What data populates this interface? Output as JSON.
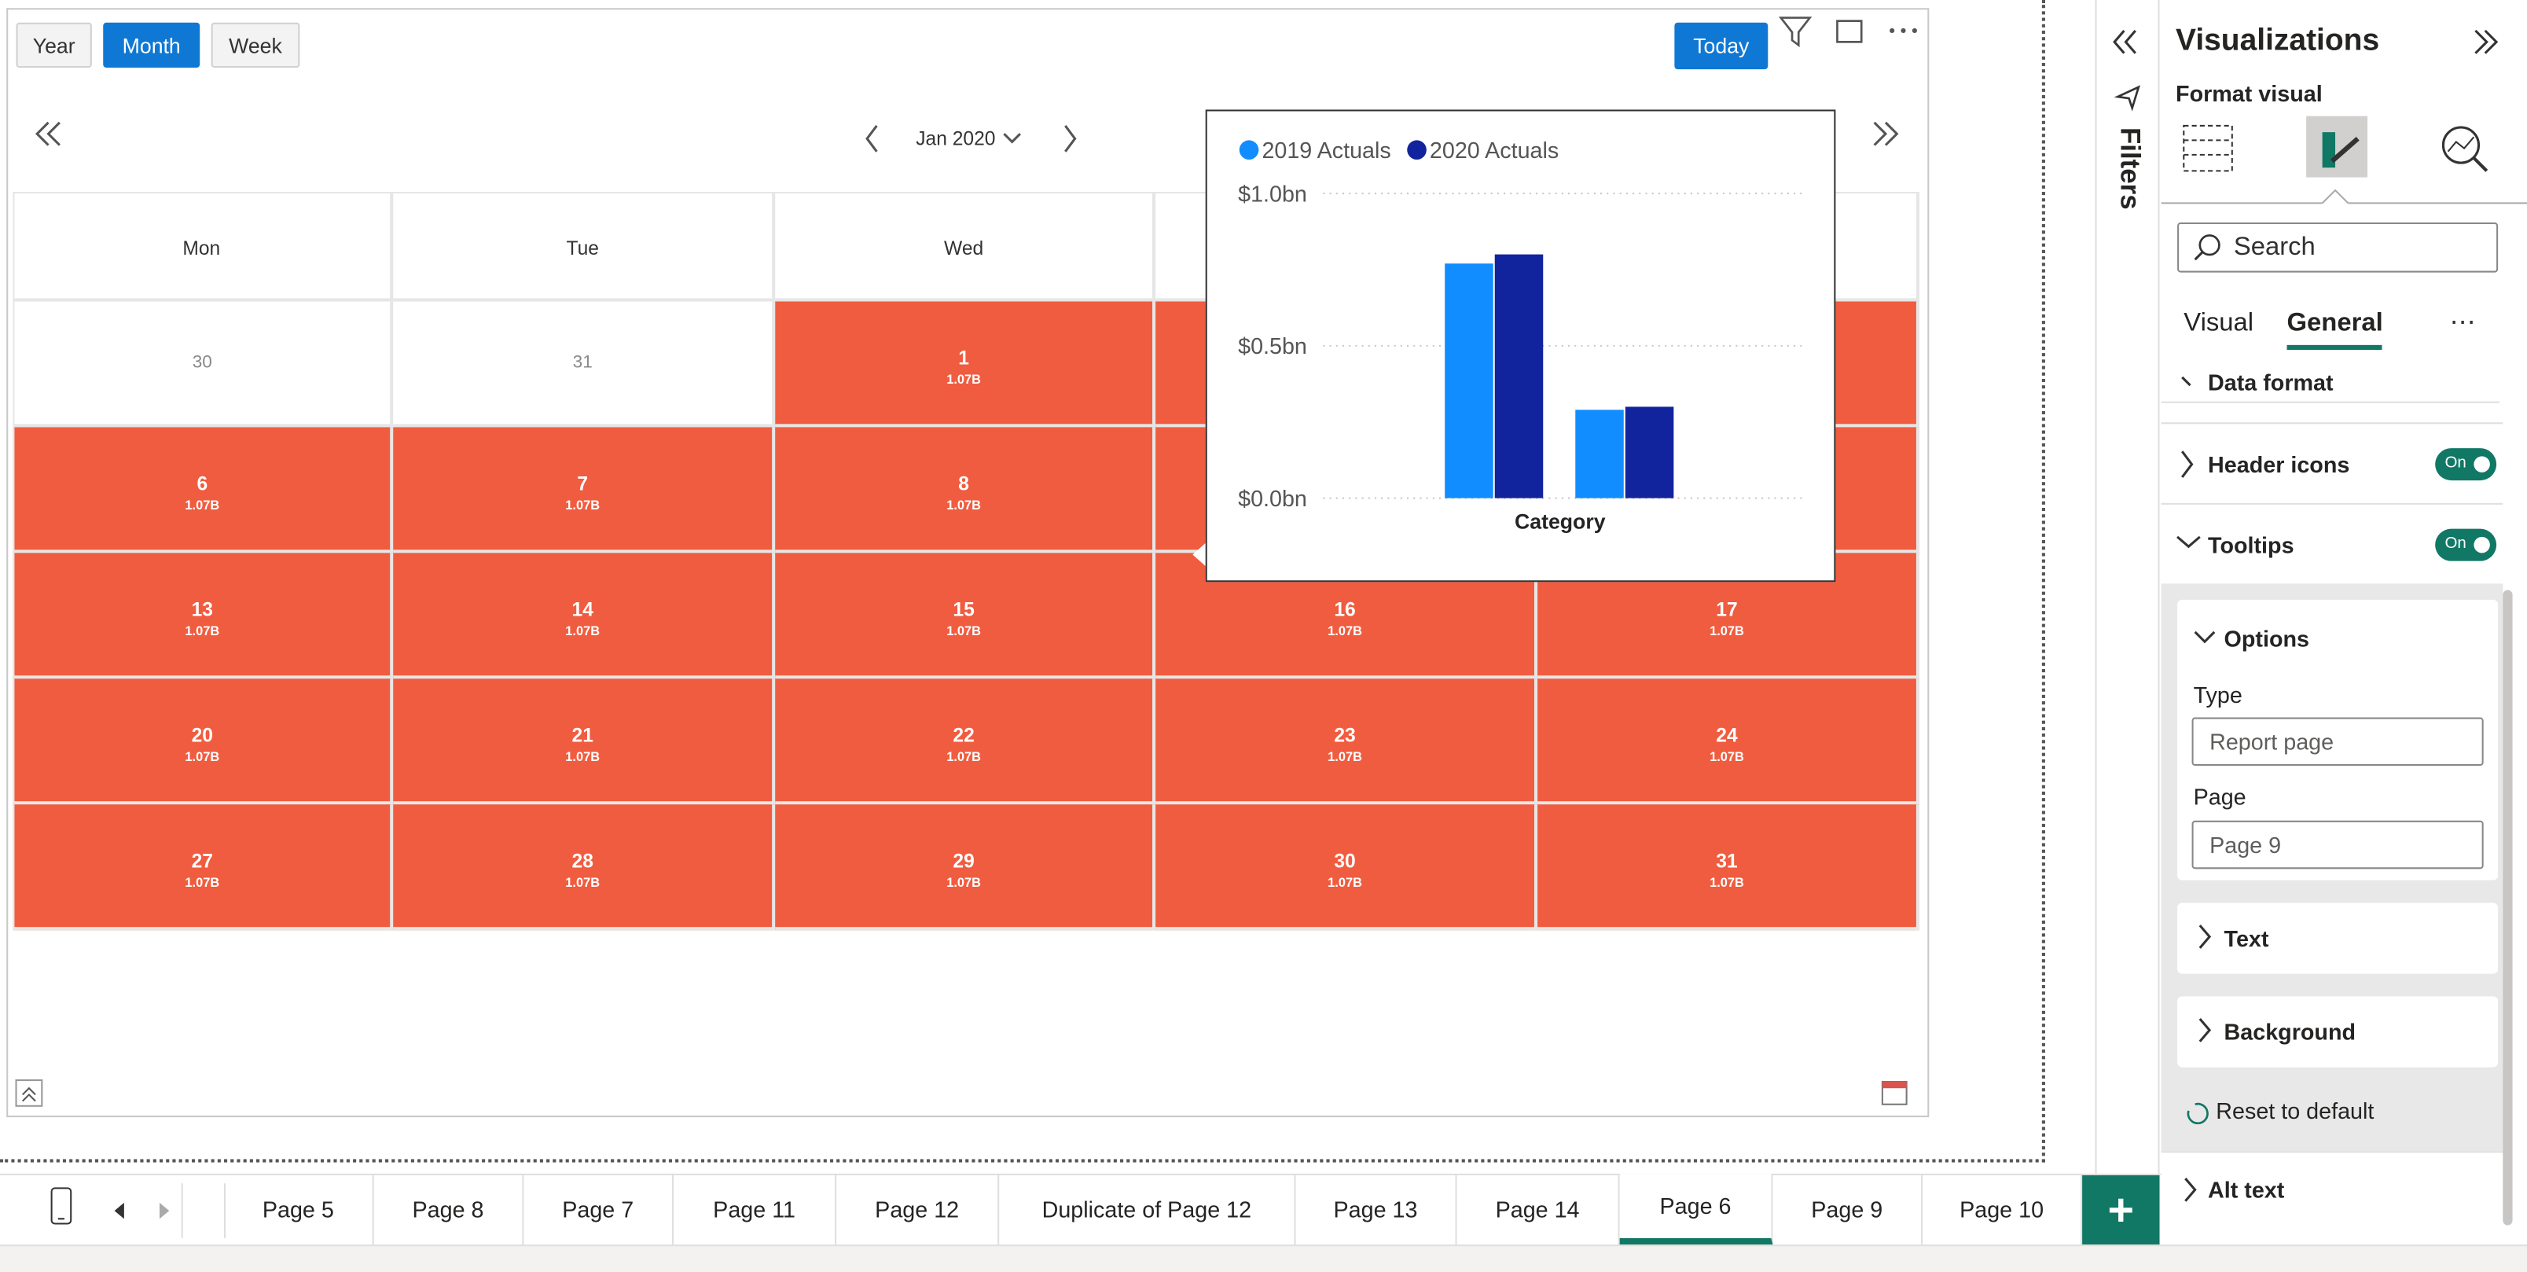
{
  "toolbar": {
    "views": [
      "Year",
      "Month",
      "Week"
    ],
    "today": "Today"
  },
  "navigation": {
    "period": "Jan 2020"
  },
  "calendar": {
    "weekdays": [
      "Mon",
      "Tue",
      "Wed"
    ],
    "weeks": [
      [
        {
          "day": "30"
        },
        {
          "day": "31"
        },
        {
          "day": "1",
          "value": "1.07B"
        }
      ],
      [
        {
          "day": "6",
          "value": "1.07B"
        },
        {
          "day": "7",
          "value": "1.07B"
        },
        {
          "day": "8",
          "value": "1.07B"
        }
      ],
      [
        {
          "day": "13",
          "value": "1.07B"
        },
        {
          "day": "14",
          "value": "1.07B"
        },
        {
          "day": "15",
          "value": "1.07B"
        },
        {
          "day": "16",
          "value": "1.07B"
        },
        {
          "day": "17",
          "value": "1.07B"
        }
      ],
      [
        {
          "day": "20",
          "value": "1.07B"
        },
        {
          "day": "21",
          "value": "1.07B"
        },
        {
          "day": "22",
          "value": "1.07B"
        },
        {
          "day": "23",
          "value": "1.07B"
        },
        {
          "day": "24",
          "value": "1.07B"
        }
      ],
      [
        {
          "day": "27",
          "value": "1.07B"
        },
        {
          "day": "28",
          "value": "1.07B"
        },
        {
          "day": "29",
          "value": "1.07B"
        },
        {
          "day": "30",
          "value": "1.07B"
        },
        {
          "day": "31",
          "value": "1.07B"
        }
      ]
    ]
  },
  "tooltip_chart": {
    "type": "bar",
    "x_label": "Category",
    "categories": [
      null,
      null
    ],
    "series": [
      {
        "name": "2019 Actuals",
        "color": "#118dff",
        "values": [
          0.77,
          0.29
        ]
      },
      {
        "name": "2020 Actuals",
        "color": "#12239e",
        "values": [
          0.8,
          0.3
        ]
      }
    ],
    "ylim": [
      0,
      1.0
    ],
    "yticks": [
      {
        "value": 0,
        "label": "$0.0bn"
      },
      {
        "value": 0.5,
        "label": "$0.5bn"
      },
      {
        "value": 1.0,
        "label": "$1.0bn"
      }
    ],
    "grid": true
  },
  "pane": {
    "filters": "Filters",
    "title": "Visualizations",
    "subtitle": "Format visual",
    "search": "Search",
    "tabs": [
      "Visual",
      "General"
    ],
    "sections": {
      "data_format": "Data format",
      "header_icons": "Header icons",
      "tooltips": "Tooltips",
      "toggle": "On",
      "options": "Options",
      "type_label": "Type",
      "type_value": "Report page",
      "page_label": "Page",
      "page_value": "Page 9",
      "text": "Text",
      "background": "Background",
      "reset": "Reset to default",
      "alt_text": "Alt text"
    }
  },
  "page_tabs": [
    "Page 5",
    "Page 8",
    "Page 7",
    "Page 11",
    "Page 12",
    "Duplicate of Page 12",
    "Page 13",
    "Page 14",
    "Page 6",
    "Page 9",
    "Page 10"
  ]
}
